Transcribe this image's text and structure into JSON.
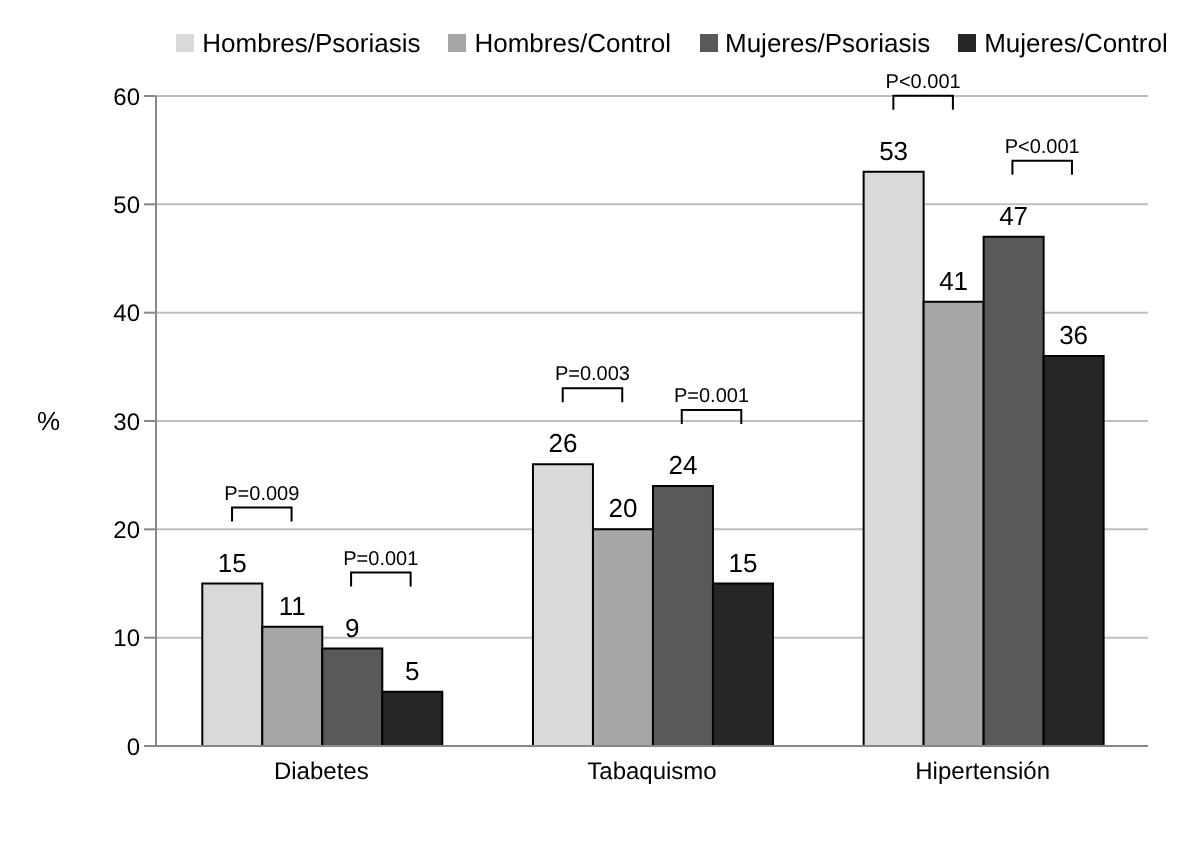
{
  "chart_data": {
    "type": "bar",
    "ylabel": "%",
    "categories": [
      "Diabetes",
      "Tabaquismo",
      "Hipertensión"
    ],
    "series": [
      {
        "name": "Hombres/Psoriasis",
        "color": "#d9d9d9",
        "values": [
          15,
          26,
          53
        ]
      },
      {
        "name": "Hombres/Control",
        "color": "#a6a6a6",
        "values": [
          11,
          20,
          41
        ]
      },
      {
        "name": "Mujeres/Psoriasis",
        "color": "#595959",
        "values": [
          9,
          24,
          47
        ]
      },
      {
        "name": "Mujeres/Control",
        "color": "#262626",
        "values": [
          5,
          15,
          36
        ]
      }
    ],
    "ylim": [
      0,
      60
    ],
    "yticks": [
      0,
      10,
      20,
      30,
      40,
      50,
      60
    ],
    "grid": "y",
    "legend": "top",
    "data_labels": true,
    "annotations": [
      "P=0.009",
      "P=0.001",
      "P=0.003",
      "P=0.001",
      "P<0.001",
      "P<0.001"
    ]
  }
}
